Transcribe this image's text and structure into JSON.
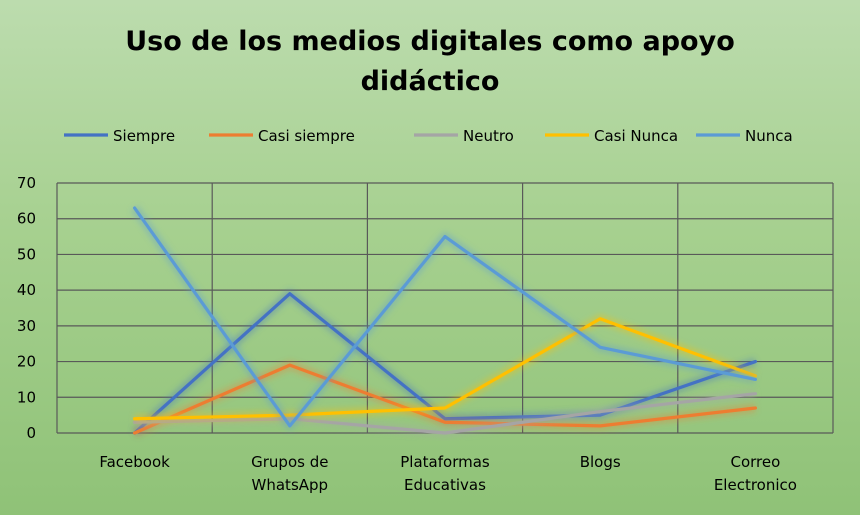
{
  "chart_data": {
    "type": "line",
    "title_line1": "Uso de los medios digitales como apoyo",
    "title_line2": "didáctico",
    "categories": [
      [
        "Facebook"
      ],
      [
        "Grupos de",
        "WhatsApp"
      ],
      [
        "Plataformas",
        "Educativas"
      ],
      [
        "Blogs"
      ],
      [
        "Correo",
        "Electronico"
      ]
    ],
    "ylim": [
      0,
      70
    ],
    "yticks": [
      0,
      10,
      20,
      30,
      40,
      50,
      60,
      70
    ],
    "grid": true,
    "legend_position": "top",
    "series": [
      {
        "name": "Siempre",
        "color": "#4472c4",
        "values": [
          0,
          39,
          4,
          5,
          20
        ]
      },
      {
        "name": "Casi siempre",
        "color": "#ed7d31",
        "values": [
          0,
          19,
          3,
          2,
          7
        ]
      },
      {
        "name": "Neutro",
        "color": "#a5a5a5",
        "values": [
          3,
          4,
          0,
          6,
          11
        ]
      },
      {
        "name": "Casi Nunca",
        "color": "#ffc000",
        "values": [
          4,
          5,
          7,
          32,
          16
        ]
      },
      {
        "name": "Nunca",
        "color": "#5b9bd5",
        "values": [
          63,
          2,
          55,
          24,
          15
        ]
      }
    ]
  }
}
